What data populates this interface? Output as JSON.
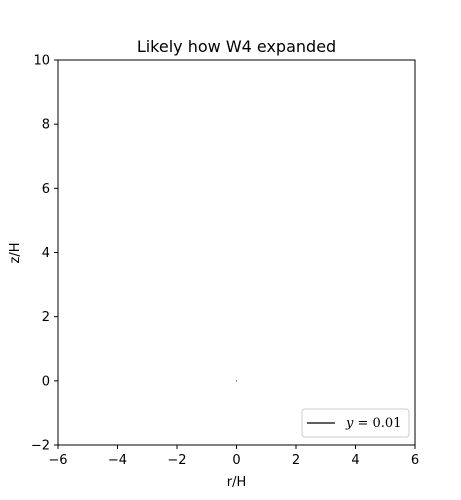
{
  "chart_data": {
    "type": "line",
    "title": "Likely how W4 expanded",
    "xlabel": "r/H",
    "ylabel": "z/H",
    "xlim": [
      -6,
      6
    ],
    "ylim": [
      -2,
      10
    ],
    "xticks": [
      -6,
      -4,
      -2,
      0,
      2,
      4,
      6
    ],
    "yticks": [
      -2,
      0,
      2,
      4,
      6,
      8,
      10
    ],
    "xtick_labels": [
      "−6",
      "−4",
      "−2",
      "0",
      "2",
      "4",
      "6"
    ],
    "ytick_labels": [
      "−2",
      "0",
      "2",
      "4",
      "6",
      "8",
      "10"
    ],
    "grid": false,
    "legend_position": "lower right",
    "series": [
      {
        "name": "y = 0.01",
        "legend_var": "y",
        "legend_value": " = 0.01",
        "color": "#000000",
        "x": [
          -0.01,
          0.01
        ],
        "y": [
          0.0,
          0.0
        ]
      }
    ]
  }
}
